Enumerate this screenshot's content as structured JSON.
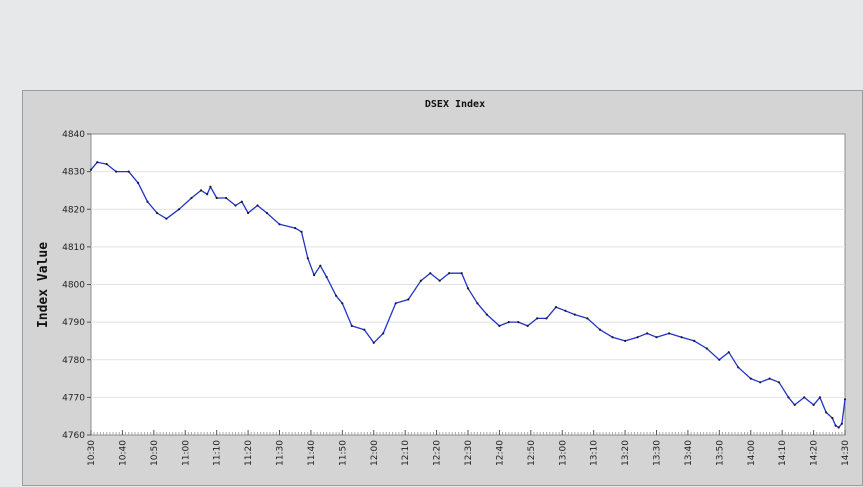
{
  "chart_data": {
    "type": "line",
    "title": "DSEX Index",
    "xlabel": "",
    "ylabel": "Index Value",
    "ylim": [
      4760,
      4840
    ],
    "yticks": [
      4760,
      4770,
      4780,
      4790,
      4800,
      4810,
      4820,
      4830,
      4840
    ],
    "xticks": [
      "10:30",
      "10:40",
      "10:50",
      "11:00",
      "11:10",
      "11:20",
      "11:30",
      "11:40",
      "11:50",
      "12:00",
      "12:10",
      "12:20",
      "12:30",
      "12:40",
      "12:50",
      "13:00",
      "13:10",
      "13:20",
      "13:30",
      "13:40",
      "13:50",
      "14:00",
      "14:10",
      "14:20",
      "14:30"
    ],
    "grid": true,
    "series": [
      {
        "color": "#2233cc",
        "points": [
          [
            "10:30",
            4830.5
          ],
          [
            "10:32",
            4832.5
          ],
          [
            "10:35",
            4832
          ],
          [
            "10:38",
            4830
          ],
          [
            "10:42",
            4830
          ],
          [
            "10:45",
            4827
          ],
          [
            "10:48",
            4822
          ],
          [
            "10:51",
            4819
          ],
          [
            "10:54",
            4817.5
          ],
          [
            "10:58",
            4820
          ],
          [
            "11:02",
            4823
          ],
          [
            "11:05",
            4825
          ],
          [
            "11:07",
            4824
          ],
          [
            "11:08",
            4826
          ],
          [
            "11:10",
            4823
          ],
          [
            "11:13",
            4823
          ],
          [
            "11:16",
            4821
          ],
          [
            "11:18",
            4822
          ],
          [
            "11:20",
            4819
          ],
          [
            "11:23",
            4821
          ],
          [
            "11:26",
            4819
          ],
          [
            "11:30",
            4816
          ],
          [
            "11:35",
            4815
          ],
          [
            "11:37",
            4814
          ],
          [
            "11:39",
            4807
          ],
          [
            "11:41",
            4802.5
          ],
          [
            "11:43",
            4805
          ],
          [
            "11:45",
            4802
          ],
          [
            "11:48",
            4797
          ],
          [
            "11:50",
            4795
          ],
          [
            "11:53",
            4789
          ],
          [
            "11:57",
            4788
          ],
          [
            "12:00",
            4784.5
          ],
          [
            "12:03",
            4787
          ],
          [
            "12:07",
            4795
          ],
          [
            "12:11",
            4796
          ],
          [
            "12:15",
            4801
          ],
          [
            "12:18",
            4803
          ],
          [
            "12:21",
            4801
          ],
          [
            "12:24",
            4803
          ],
          [
            "12:28",
            4803
          ],
          [
            "12:30",
            4799
          ],
          [
            "12:33",
            4795
          ],
          [
            "12:36",
            4792
          ],
          [
            "12:40",
            4789
          ],
          [
            "12:43",
            4790
          ],
          [
            "12:46",
            4790
          ],
          [
            "12:49",
            4789
          ],
          [
            "12:52",
            4791
          ],
          [
            "12:55",
            4791
          ],
          [
            "12:58",
            4794
          ],
          [
            "13:01",
            4793
          ],
          [
            "13:04",
            4792
          ],
          [
            "13:08",
            4791
          ],
          [
            "13:12",
            4788
          ],
          [
            "13:16",
            4786
          ],
          [
            "13:20",
            4785
          ],
          [
            "13:24",
            4786
          ],
          [
            "13:27",
            4787
          ],
          [
            "13:30",
            4786
          ],
          [
            "13:34",
            4787
          ],
          [
            "13:38",
            4786
          ],
          [
            "13:42",
            4785
          ],
          [
            "13:46",
            4783
          ],
          [
            "13:50",
            4780
          ],
          [
            "13:53",
            4782
          ],
          [
            "13:56",
            4778
          ],
          [
            "14:00",
            4775
          ],
          [
            "14:03",
            4774
          ],
          [
            "14:06",
            4775
          ],
          [
            "14:09",
            4774
          ],
          [
            "14:12",
            4770
          ],
          [
            "14:14",
            4768
          ],
          [
            "14:17",
            4770
          ],
          [
            "14:20",
            4768
          ],
          [
            "14:22",
            4770
          ],
          [
            "14:24",
            4766
          ],
          [
            "14:26",
            4764.5
          ],
          [
            "14:27",
            4762.5
          ],
          [
            "14:28",
            4762
          ],
          [
            "14:29",
            4763
          ],
          [
            "14:30",
            4769.5
          ]
        ]
      }
    ]
  }
}
